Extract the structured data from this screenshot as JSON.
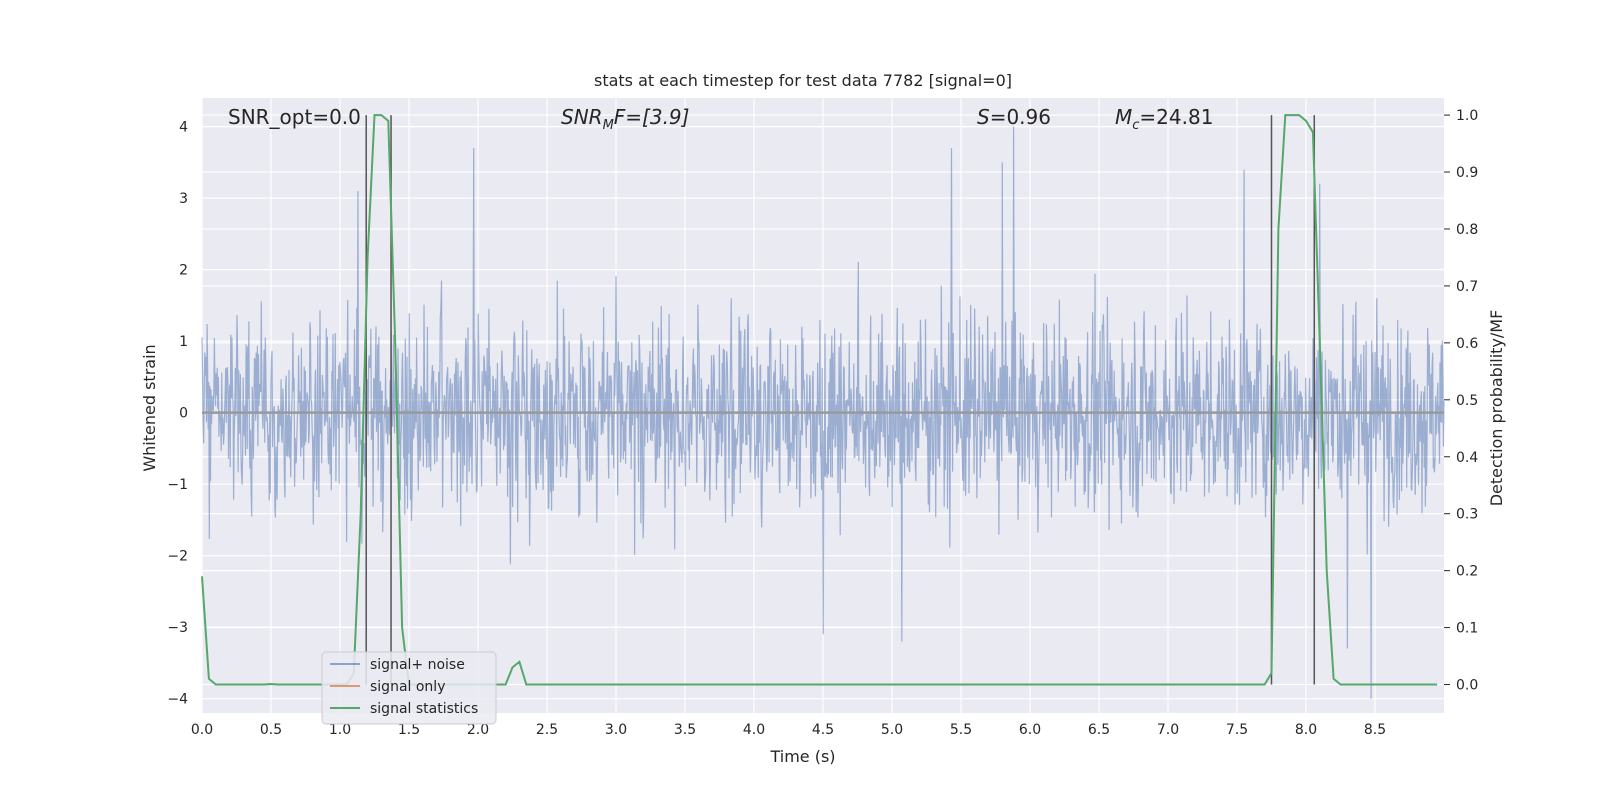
{
  "chart_data": {
    "type": "line",
    "title": "stats at each timestep for test data 7782 [signal=0]",
    "xlabel": "Time (s)",
    "ylabel": "Whitened strain",
    "ylabel_right": "Detection probability/MF",
    "xlim": [
      0.0,
      9.0
    ],
    "ylim": [
      -4.2,
      4.4
    ],
    "ylim_right": [
      -0.05,
      1.03
    ],
    "x_ticks": [
      "0.0",
      "0.5",
      "1.0",
      "1.5",
      "2.0",
      "2.5",
      "3.0",
      "3.5",
      "4.0",
      "4.5",
      "5.0",
      "5.5",
      "6.0",
      "6.5",
      "7.0",
      "7.5",
      "8.0",
      "8.5"
    ],
    "y_ticks": [
      "-4",
      "-3",
      "-2",
      "-1",
      "0",
      "1",
      "2",
      "3",
      "4"
    ],
    "y_ticks_right": [
      "0.0",
      "0.1",
      "0.2",
      "0.3",
      "0.4",
      "0.5",
      "0.6",
      "0.7",
      "0.8",
      "0.9",
      "1.0"
    ],
    "grid": true,
    "annotations": {
      "snr_opt": "SNR_opt=0.0",
      "snr_mf_base": "SNR",
      "snr_mf_sub": "M",
      "snr_mf_rest": "F=[3.9]",
      "s_label": "S",
      "s_value": "=0.96",
      "mc_label": "M",
      "mc_sub": "c",
      "mc_value": "=24.81"
    },
    "legend": {
      "position": "lower-left",
      "entries": [
        "signal+ noise",
        "signal only",
        "signal statistics"
      ]
    },
    "series": [
      {
        "name": "signal+ noise",
        "color": "#4c72b0",
        "kind": "noise-trace",
        "n_samples": 2200,
        "amplitude_sigma": 1.0,
        "spikes": [
          {
            "x": 1.13,
            "y": 3.1
          },
          {
            "x": 1.97,
            "y": 3.7
          },
          {
            "x": 5.43,
            "y": 3.7
          },
          {
            "x": 5.8,
            "y": 3.5
          },
          {
            "x": 5.88,
            "y": 4.0
          },
          {
            "x": 7.55,
            "y": 3.4
          },
          {
            "x": 8.1,
            "y": 3.2
          },
          {
            "x": 8.3,
            "y": -3.3
          },
          {
            "x": 8.47,
            "y": -4.0
          },
          {
            "x": 5.07,
            "y": -3.2
          },
          {
            "x": 4.5,
            "y": -3.1
          }
        ]
      },
      {
        "name": "signal only",
        "color": "#dd8452",
        "x": [
          0.0,
          9.0
        ],
        "y": [
          0.0,
          0.0
        ]
      },
      {
        "name": "signal statistics",
        "color": "#55a868",
        "axis": "right",
        "x": [
          0.0,
          0.05,
          0.1,
          0.15,
          0.2,
          0.25,
          0.3,
          0.35,
          0.4,
          0.45,
          0.5,
          0.55,
          0.6,
          0.65,
          0.7,
          0.75,
          0.8,
          0.85,
          0.9,
          0.95,
          1.0,
          1.05,
          1.1,
          1.15,
          1.2,
          1.25,
          1.3,
          1.35,
          1.4,
          1.45,
          1.5,
          1.55,
          1.6,
          1.65,
          1.7,
          1.75,
          1.8,
          1.85,
          1.9,
          1.95,
          2.0,
          2.05,
          2.1,
          2.15,
          2.2,
          2.25,
          2.3,
          2.35,
          2.4,
          2.45,
          2.5,
          3.0,
          3.5,
          4.0,
          4.5,
          5.0,
          5.5,
          6.0,
          6.5,
          7.0,
          7.5,
          7.65,
          7.7,
          7.75,
          7.8,
          7.85,
          7.9,
          7.95,
          8.0,
          8.05,
          8.1,
          8.15,
          8.2,
          8.25,
          8.3,
          8.4,
          8.5,
          8.6,
          8.7,
          8.8,
          8.9,
          8.95
        ],
        "y": [
          0.19,
          0.01,
          0.0,
          0.0,
          0.0,
          0.0,
          0.0,
          0.0,
          0.0,
          0.0,
          0.001,
          0.0,
          0.0,
          0.0,
          0.0,
          0.0,
          0.0,
          0.0,
          0.0,
          0.0,
          0.0,
          0.0,
          0.02,
          0.3,
          0.75,
          1.0,
          1.0,
          0.99,
          0.6,
          0.1,
          0.0,
          0.0,
          0.0,
          0.0,
          0.0,
          0.0,
          0.0,
          0.0,
          0.0,
          0.0,
          0.0,
          0.0,
          0.0,
          0.0,
          0.0,
          0.03,
          0.04,
          0.0,
          0.0,
          0.0,
          0.0,
          0.0,
          0.0,
          0.0,
          0.0,
          0.0,
          0.0,
          0.0,
          0.0,
          0.0,
          0.0,
          0.0,
          0.0,
          0.02,
          0.8,
          1.0,
          1.0,
          1.0,
          0.99,
          0.97,
          0.6,
          0.2,
          0.01,
          0.0,
          0.0,
          0.0,
          0.0,
          0.0,
          0.0,
          0.0,
          0.0,
          0.0
        ]
      }
    ],
    "vlines": [
      1.19,
      1.37,
      7.75,
      8.06
    ],
    "colors": {
      "plot_bg": "#eaeaf2",
      "grid": "#ffffff",
      "text": "#262626",
      "vline": "#555555",
      "zero_line": "#999999"
    }
  }
}
